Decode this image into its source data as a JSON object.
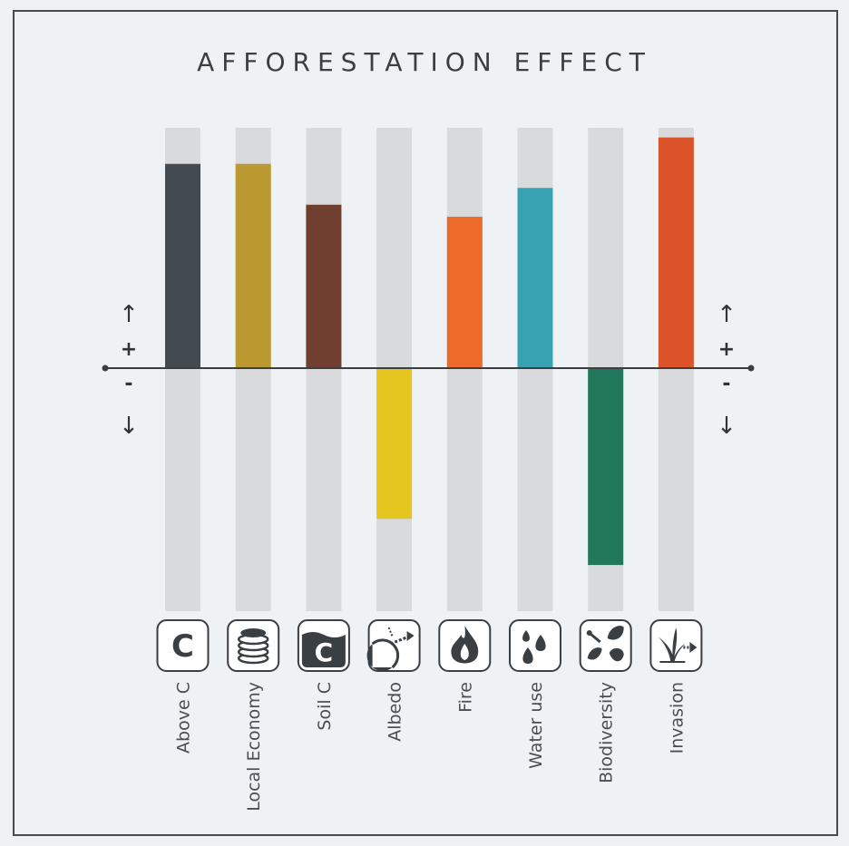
{
  "chart_data": {
    "type": "bar",
    "title": "AFFORESTATION EFFECT",
    "categories": [
      "Above C",
      "Local Economy",
      "Soil C",
      "Albedo",
      "Fire",
      "Water use",
      "Biodiversity",
      "Invasion"
    ],
    "values": [
      0.85,
      0.85,
      0.68,
      -0.62,
      0.63,
      0.75,
      -0.81,
      0.96
    ],
    "colors": [
      "#434a50",
      "#ba9a30",
      "#6e3e2e",
      "#e4c61f",
      "#ec6a2a",
      "#38a2b2",
      "#21775a",
      "#dc5329"
    ],
    "track_color": "#d8dadc",
    "ylim": [
      -1,
      1
    ],
    "icons": [
      "carbon-icon",
      "coins-icon",
      "soil-carbon-icon",
      "albedo-icon",
      "fire-icon",
      "water-drops-icon",
      "biodiversity-icon",
      "invasion-icon"
    ],
    "axis_markers": {
      "up_arrow": "↑",
      "plus": "+",
      "minus": "-",
      "down_arrow": "↓"
    }
  }
}
